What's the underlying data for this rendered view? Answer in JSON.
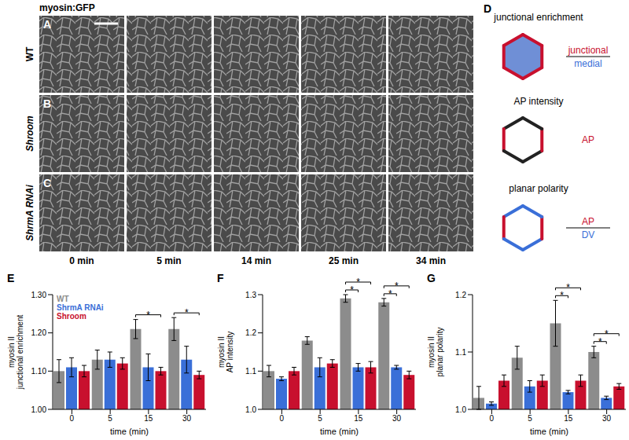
{
  "figure": {
    "stain": "myosin:GFP",
    "images": {
      "letters": [
        "A",
        "B",
        "C"
      ],
      "rows": [
        "WT",
        "Shroom",
        "ShrmA RNAi"
      ],
      "times": [
        "0 min",
        "5 min",
        "14 min",
        "25 min",
        "34 min"
      ]
    },
    "diagram": {
      "letter": "D",
      "items": [
        {
          "title": "junctional enrichment",
          "numerator": "junctional",
          "denominator": "medial"
        },
        {
          "title": "AP intensity",
          "numerator": "AP"
        },
        {
          "title": "planar polarity",
          "numerator": "AP",
          "denominator": "DV"
        }
      ]
    }
  },
  "chart_data": [
    {
      "type": "bar",
      "panel_label": "E",
      "x_label": "time (min)",
      "y_label": "myosin II junctional enrichment",
      "categories": [
        "0",
        "5",
        "15",
        "30"
      ],
      "ylim": [
        1.0,
        1.3
      ],
      "yticks": [
        {
          "value": 1.0,
          "label": "1.00"
        },
        {
          "value": 1.1,
          "label": "1.10"
        },
        {
          "value": 1.2,
          "label": "1.20"
        },
        {
          "value": 1.3,
          "label": "1.30"
        }
      ],
      "grid": false,
      "legend": "top-left",
      "series": [
        {
          "name": "WT",
          "color": "#8c8c8c",
          "values": [
            1.1,
            1.13,
            1.21,
            1.21
          ],
          "errors": [
            0.03,
            0.025,
            0.025,
            0.03
          ]
        },
        {
          "name": "ShrmA RNAi",
          "color": "#3a6fd8",
          "values": [
            1.11,
            1.13,
            1.11,
            1.13
          ],
          "errors": [
            0.025,
            0.02,
            0.035,
            0.035
          ]
        },
        {
          "name": "Shroom",
          "color": "#c8102e",
          "values": [
            1.1,
            1.12,
            1.1,
            1.09
          ],
          "errors": [
            0.015,
            0.015,
            0.01,
            0.01
          ]
        }
      ],
      "significance": [
        {
          "category": "15",
          "from": "WT",
          "to": "Shroom",
          "label": "*"
        },
        {
          "category": "30",
          "from": "WT",
          "to": "Shroom",
          "label": "*"
        }
      ]
    },
    {
      "type": "bar",
      "panel_label": "F",
      "x_label": "time (min)",
      "y_label": "myosin II AP intensity",
      "categories": [
        "0",
        "5",
        "15",
        "30"
      ],
      "ylim": [
        1.0,
        1.3
      ],
      "yticks": [
        {
          "value": 1.0,
          "label": "1.0"
        },
        1.1,
        1.2,
        1.3
      ],
      "grid": false,
      "series": [
        {
          "name": "WT",
          "color": "#8c8c8c",
          "values": [
            1.1,
            1.18,
            1.29,
            1.28
          ],
          "errors": [
            0.015,
            0.01,
            0.01,
            0.01
          ]
        },
        {
          "name": "ShrmA RNAi",
          "color": "#3a6fd8",
          "values": [
            1.08,
            1.11,
            1.11,
            1.11
          ],
          "errors": [
            0.005,
            0.025,
            0.01,
            0.005
          ]
        },
        {
          "name": "Shroom",
          "color": "#c8102e",
          "values": [
            1.1,
            1.12,
            1.11,
            1.09
          ],
          "errors": [
            0.01,
            0.01,
            0.015,
            0.01
          ]
        }
      ],
      "significance": [
        {
          "category": "15",
          "from": "WT",
          "to": "ShrmA RNAi",
          "label": "*"
        },
        {
          "category": "15",
          "from": "WT",
          "to": "Shroom",
          "label": "*"
        },
        {
          "category": "30",
          "from": "WT",
          "to": "ShrmA RNAi",
          "label": "*"
        },
        {
          "category": "30",
          "from": "WT",
          "to": "Shroom",
          "label": "*"
        }
      ]
    },
    {
      "type": "bar",
      "panel_label": "G",
      "x_label": "time (min)",
      "y_label": "myosin II planar polarity",
      "categories": [
        "0",
        "5",
        "15",
        "30"
      ],
      "ylim": [
        1.0,
        1.2
      ],
      "yticks": [
        {
          "value": 1.0,
          "label": "1.0"
        },
        1.1,
        1.2
      ],
      "grid": false,
      "series": [
        {
          "name": "WT",
          "color": "#8c8c8c",
          "values": [
            1.02,
            1.09,
            1.15,
            1.1
          ],
          "errors": [
            0.02,
            0.02,
            0.04,
            0.01
          ]
        },
        {
          "name": "ShrmA RNAi",
          "color": "#3a6fd8",
          "values": [
            1.01,
            1.04,
            1.03,
            1.02
          ],
          "errors": [
            0.003,
            0.01,
            0.003,
            0.003
          ]
        },
        {
          "name": "Shroom",
          "color": "#c8102e",
          "values": [
            1.05,
            1.05,
            1.05,
            1.04
          ],
          "errors": [
            0.01,
            0.01,
            0.01,
            0.005
          ]
        }
      ],
      "significance": [
        {
          "category": "15",
          "from": "WT",
          "to": "ShrmA RNAi",
          "label": "*"
        },
        {
          "category": "15",
          "from": "WT",
          "to": "Shroom",
          "label": "*"
        },
        {
          "category": "30",
          "from": "WT",
          "to": "ShrmA RNAi",
          "label": "*"
        },
        {
          "category": "30",
          "from": "WT",
          "to": "Shroom",
          "label": "*"
        }
      ]
    }
  ]
}
